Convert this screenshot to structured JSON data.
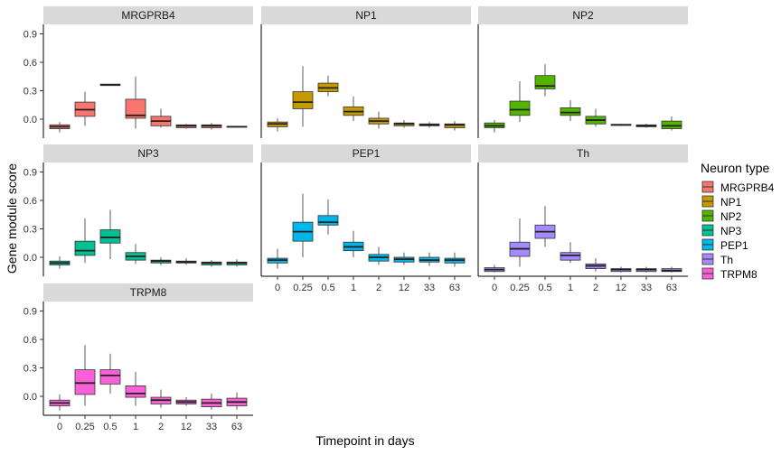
{
  "chart_data": {
    "type": "boxplot",
    "xlabel": "Timepoint in days",
    "ylabel": "Gene module score",
    "categories": [
      "0",
      "0.25",
      "0.5",
      "1",
      "2",
      "12",
      "33",
      "63"
    ],
    "y_ticks": [
      "0.0",
      "0.3",
      "0.6",
      "0.9"
    ],
    "ylim": [
      -0.2,
      1.0
    ],
    "grid": false,
    "legend": {
      "title": "Neuron type",
      "position": "right"
    },
    "facets": [
      {
        "name": "MRGPRB4",
        "color": "#F8766D",
        "boxes": [
          {
            "q1": -0.1,
            "median": -0.08,
            "q3": -0.06,
            "lower": -0.14,
            "upper": -0.03
          },
          {
            "q1": 0.03,
            "median": 0.1,
            "q3": 0.18,
            "lower": -0.07,
            "upper": 0.29
          },
          {
            "q1": 0.36,
            "median": 0.36,
            "q3": 0.37,
            "lower": 0.36,
            "upper": 0.37
          },
          {
            "q1": 0.01,
            "median": 0.04,
            "q3": 0.21,
            "lower": -0.1,
            "upper": 0.45
          },
          {
            "q1": -0.07,
            "median": -0.02,
            "q3": 0.03,
            "lower": -0.09,
            "upper": 0.11
          },
          {
            "q1": -0.09,
            "median": -0.07,
            "q3": -0.06,
            "lower": -0.1,
            "upper": -0.05
          },
          {
            "q1": -0.09,
            "median": -0.07,
            "q3": -0.06,
            "lower": -0.11,
            "upper": -0.04
          },
          {
            "q1": -0.085,
            "median": -0.08,
            "q3": -0.075,
            "lower": -0.09,
            "upper": -0.07
          }
        ]
      },
      {
        "name": "NP1",
        "color": "#C49A00",
        "boxes": [
          {
            "q1": -0.08,
            "median": -0.05,
            "q3": -0.03,
            "lower": -0.13,
            "upper": 0.01
          },
          {
            "q1": 0.11,
            "median": 0.18,
            "q3": 0.29,
            "lower": -0.08,
            "upper": 0.56
          },
          {
            "q1": 0.29,
            "median": 0.33,
            "q3": 0.38,
            "lower": 0.24,
            "upper": 0.46
          },
          {
            "q1": 0.04,
            "median": 0.08,
            "q3": 0.13,
            "lower": -0.02,
            "upper": 0.24
          },
          {
            "q1": -0.05,
            "median": -0.02,
            "q3": 0.01,
            "lower": -0.1,
            "upper": 0.08
          },
          {
            "q1": -0.07,
            "median": -0.05,
            "q3": -0.04,
            "lower": -0.09,
            "upper": -0.01
          },
          {
            "q1": -0.07,
            "median": -0.06,
            "q3": -0.05,
            "lower": -0.09,
            "upper": -0.03
          },
          {
            "q1": -0.09,
            "median": -0.06,
            "q3": -0.05,
            "lower": -0.12,
            "upper": -0.02
          }
        ]
      },
      {
        "name": "NP2",
        "color": "#53B400",
        "boxes": [
          {
            "q1": -0.09,
            "median": -0.07,
            "q3": -0.04,
            "lower": -0.14,
            "upper": -0.01
          },
          {
            "q1": 0.04,
            "median": 0.1,
            "q3": 0.19,
            "lower": -0.03,
            "upper": 0.4
          },
          {
            "q1": 0.32,
            "median": 0.35,
            "q3": 0.46,
            "lower": 0.24,
            "upper": 0.58
          },
          {
            "q1": 0.04,
            "median": 0.07,
            "q3": 0.12,
            "lower": -0.02,
            "upper": 0.2
          },
          {
            "q1": -0.05,
            "median": -0.01,
            "q3": 0.03,
            "lower": -0.08,
            "upper": 0.11
          },
          {
            "q1": -0.065,
            "median": -0.06,
            "q3": -0.055,
            "lower": -0.07,
            "upper": -0.05
          },
          {
            "q1": -0.08,
            "median": -0.07,
            "q3": -0.06,
            "lower": -0.09,
            "upper": -0.05
          },
          {
            "q1": -0.1,
            "median": -0.07,
            "q3": -0.02,
            "lower": -0.12,
            "upper": 0.03
          }
        ]
      },
      {
        "name": "NP3",
        "color": "#00C094",
        "boxes": [
          {
            "q1": -0.08,
            "median": -0.06,
            "q3": -0.04,
            "lower": -0.12,
            "upper": 0.01
          },
          {
            "q1": 0.02,
            "median": 0.07,
            "q3": 0.17,
            "lower": -0.06,
            "upper": 0.41
          },
          {
            "q1": 0.15,
            "median": 0.21,
            "q3": 0.29,
            "lower": -0.02,
            "upper": 0.5
          },
          {
            "q1": -0.03,
            "median": 0.01,
            "q3": 0.05,
            "lower": -0.07,
            "upper": 0.14
          },
          {
            "q1": -0.06,
            "median": -0.04,
            "q3": -0.03,
            "lower": -0.08,
            "upper": 0.0
          },
          {
            "q1": -0.06,
            "median": -0.05,
            "q3": -0.04,
            "lower": -0.08,
            "upper": -0.01
          },
          {
            "q1": -0.08,
            "median": -0.06,
            "q3": -0.05,
            "lower": -0.1,
            "upper": -0.03
          },
          {
            "q1": -0.08,
            "median": -0.06,
            "q3": -0.05,
            "lower": -0.1,
            "upper": -0.02
          }
        ]
      },
      {
        "name": "PEP1",
        "color": "#00B6EB",
        "boxes": [
          {
            "q1": -0.06,
            "median": -0.03,
            "q3": -0.01,
            "lower": -0.12,
            "upper": 0.09
          },
          {
            "q1": 0.17,
            "median": 0.27,
            "q3": 0.37,
            "lower": 0.0,
            "upper": 0.67
          },
          {
            "q1": 0.34,
            "median": 0.37,
            "q3": 0.44,
            "lower": 0.24,
            "upper": 0.61
          },
          {
            "q1": 0.07,
            "median": 0.11,
            "q3": 0.16,
            "lower": 0.0,
            "upper": 0.28
          },
          {
            "q1": -0.04,
            "median": 0.0,
            "q3": 0.03,
            "lower": -0.08,
            "upper": 0.11
          },
          {
            "q1": -0.05,
            "median": -0.02,
            "q3": 0.0,
            "lower": -0.08,
            "upper": 0.05
          },
          {
            "q1": -0.05,
            "median": -0.03,
            "q3": 0.0,
            "lower": -0.09,
            "upper": 0.05
          },
          {
            "q1": -0.06,
            "median": -0.03,
            "q3": -0.01,
            "lower": -0.1,
            "upper": 0.05
          }
        ]
      },
      {
        "name": "Th",
        "color": "#A58AFF",
        "boxes": [
          {
            "q1": -0.15,
            "median": -0.13,
            "q3": -0.11,
            "lower": -0.16,
            "upper": -0.08
          },
          {
            "q1": 0.01,
            "median": 0.09,
            "q3": 0.16,
            "lower": -0.1,
            "upper": 0.41
          },
          {
            "q1": 0.2,
            "median": 0.27,
            "q3": 0.34,
            "lower": 0.11,
            "upper": 0.54
          },
          {
            "q1": -0.03,
            "median": 0.02,
            "q3": 0.05,
            "lower": -0.06,
            "upper": 0.16
          },
          {
            "q1": -0.12,
            "median": -0.09,
            "q3": -0.07,
            "lower": -0.15,
            "upper": -0.01
          },
          {
            "q1": -0.15,
            "median": -0.13,
            "q3": -0.12,
            "lower": -0.16,
            "upper": -0.1
          },
          {
            "q1": -0.15,
            "median": -0.13,
            "q3": -0.12,
            "lower": -0.16,
            "upper": -0.1
          },
          {
            "q1": -0.15,
            "median": -0.14,
            "q3": -0.12,
            "lower": -0.16,
            "upper": -0.1
          }
        ]
      },
      {
        "name": "TRPM8",
        "color": "#FB61D7",
        "boxes": [
          {
            "q1": -0.1,
            "median": -0.07,
            "q3": -0.04,
            "lower": -0.15,
            "upper": 0.02
          },
          {
            "q1": 0.02,
            "median": 0.14,
            "q3": 0.28,
            "lower": -0.1,
            "upper": 0.54
          },
          {
            "q1": 0.13,
            "median": 0.22,
            "q3": 0.28,
            "lower": 0.03,
            "upper": 0.45
          },
          {
            "q1": -0.01,
            "median": 0.03,
            "q3": 0.11,
            "lower": -0.1,
            "upper": 0.26
          },
          {
            "q1": -0.08,
            "median": -0.04,
            "q3": -0.01,
            "lower": -0.12,
            "upper": 0.07
          },
          {
            "q1": -0.08,
            "median": -0.06,
            "q3": -0.04,
            "lower": -0.1,
            "upper": -0.01
          },
          {
            "q1": -0.11,
            "median": -0.07,
            "q3": -0.03,
            "lower": -0.14,
            "upper": 0.03
          },
          {
            "q1": -0.1,
            "median": -0.06,
            "q3": -0.02,
            "lower": -0.14,
            "upper": 0.04
          }
        ]
      }
    ]
  }
}
